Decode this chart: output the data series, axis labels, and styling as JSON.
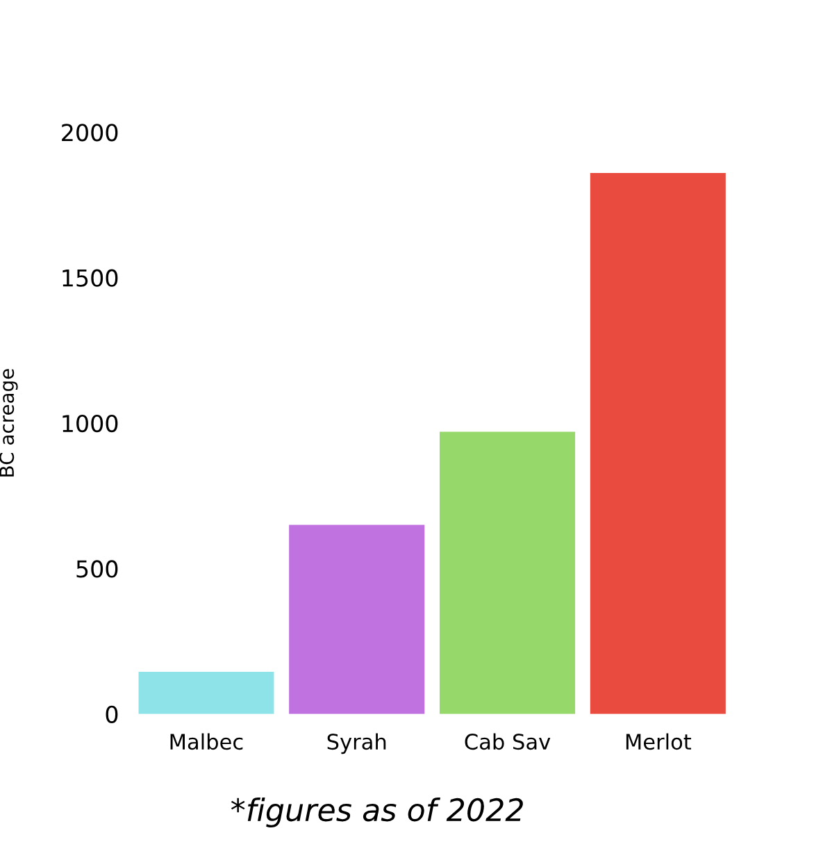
{
  "chart_data": {
    "type": "bar",
    "ylabel": "BC acreage",
    "categories": [
      "Malbec",
      "Syrah",
      "Cab Sav",
      "Merlot"
    ],
    "values": [
      145,
      650,
      970,
      1860
    ],
    "colors": [
      "#8ee3e8",
      "#c073e0",
      "#96d86a",
      "#e94b3f"
    ],
    "ylim": [
      0,
      2000
    ],
    "yticks": [
      0,
      500,
      1000,
      1500,
      2000
    ],
    "grid": false,
    "legend": false,
    "annotations": [
      "*figures as of 2022"
    ]
  }
}
